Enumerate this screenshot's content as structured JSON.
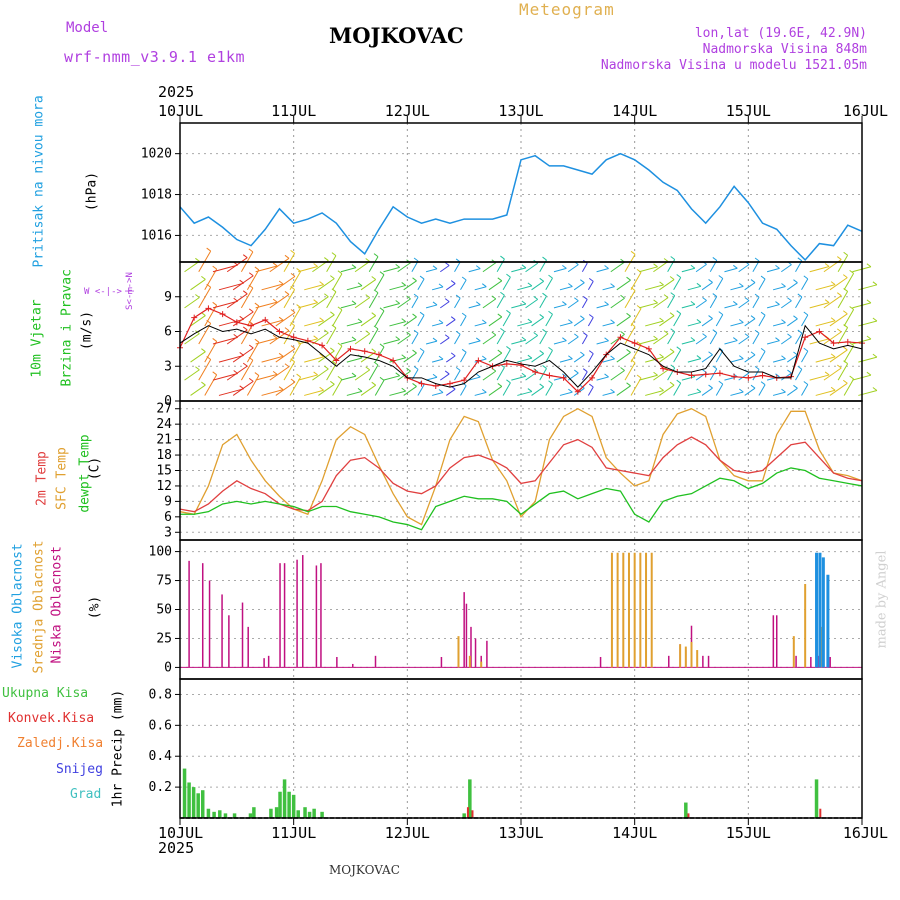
{
  "header": {
    "model_label": "Model",
    "model_name": "wrf-nmm_v3.9.1 e1km",
    "station": "MOJKOVAC",
    "product": "Meteogram",
    "lonlat": "lon,lat (19.6E, 42.9N)",
    "elevation": "Nadmorska Visina 848m",
    "model_elevation": "Nadmorska Visina u modelu 1521.05m"
  },
  "footer": {
    "station": "MOJKOVAC",
    "credit": "made by Angel"
  },
  "time_axis": {
    "year": "2025",
    "labels": [
      "10JUL",
      "11JUL",
      "12JUL",
      "13JUL",
      "14JUL",
      "15JUL",
      "16JUL"
    ]
  },
  "panels": {
    "pressure": {
      "label": "Pritisak na nivou mora",
      "unit": "(hPa)",
      "ticks": [
        "1016",
        "1018",
        "1020"
      ]
    },
    "wind": {
      "label1": "10m Vjetar",
      "label2": "Brzina i Pravac",
      "unit": "(m/s)",
      "ticks": [
        "0",
        "3",
        "6",
        "9"
      ],
      "compass_ns": "S<-|->N",
      "compass_we": "W <-|-> E"
    },
    "temperature": {
      "label1": "2m Temp",
      "label2": "SFC Temp",
      "label3": "dewpt Temp",
      "unit": "(C)",
      "ticks": [
        "3",
        "6",
        "9",
        "12",
        "15",
        "18",
        "21",
        "24",
        "27"
      ]
    },
    "cloud": {
      "label1": "Visoka Oblacnost",
      "label2": "Srednja Oblacnost",
      "label3": "Niska Oblacnost",
      "unit": "(%)",
      "ticks": [
        "0",
        "25",
        "50",
        "75",
        "100"
      ]
    },
    "precip": {
      "legend": [
        "Ukupna Kisa",
        "Konvek.Kisa",
        "Zaledj.Kisa",
        "Snijeg",
        "Grad"
      ],
      "unit": "1hr Precip (mm)",
      "ticks": [
        "0.2",
        "0.4",
        "0.6",
        "0.8"
      ]
    }
  },
  "colors": {
    "pressure": "#1e90e0",
    "wind_speed": "#e02020",
    "wind_gust": "#000000",
    "temp2m": "#e04040",
    "sfc": "#e0a030",
    "dew": "#20c020",
    "cloud_high": "#1e90e0",
    "cloud_mid": "#e0a030",
    "cloud_low": "#c01080",
    "precip_total": "#40c040",
    "precip_conv": "#e03030",
    "precip_frz": "#f08030",
    "snow": "#4040e0",
    "hail": "#40c0c0",
    "model_label": "#b040e0",
    "product": "#e0b050"
  },
  "chart_data": [
    {
      "type": "line",
      "title": "Pritisak na nivou mora",
      "ylabel": "(hPa)",
      "ylim": [
        1014.7,
        1021.5
      ],
      "x_days": [
        0,
        0.125,
        0.25,
        0.375,
        0.5,
        0.625,
        0.75,
        0.875,
        1.0,
        1.125,
        1.25,
        1.375,
        1.5,
        1.625,
        1.75,
        1.875,
        2.0,
        2.125,
        2.25,
        2.375,
        2.5,
        2.625,
        2.75,
        2.875,
        3.0,
        3.125,
        3.25,
        3.375,
        3.5,
        3.625,
        3.75,
        3.875,
        4.0,
        4.125,
        4.25,
        4.375,
        4.5,
        4.625,
        4.75,
        4.875,
        5.0,
        5.125,
        5.25,
        5.375,
        5.5,
        5.625,
        5.75,
        5.875,
        6.0
      ],
      "series": [
        {
          "values": [
            1017.4,
            1016.6,
            1016.9,
            1016.4,
            1015.8,
            1015.5,
            1016.3,
            1017.3,
            1016.6,
            1016.8,
            1017.1,
            1016.6,
            1015.7,
            1015.1,
            1016.3,
            1017.4,
            1016.9,
            1016.6,
            1016.8,
            1016.6,
            1016.8,
            1016.8,
            1016.8,
            1017.0,
            1019.7,
            1019.9,
            1019.4,
            1019.4,
            1019.2,
            1019.0,
            1019.7,
            1020.0,
            1019.7,
            1019.2,
            1018.6,
            1018.2,
            1017.3,
            1016.6,
            1017.4,
            1018.4,
            1017.6,
            1016.6,
            1016.3,
            1015.5,
            1014.8,
            1015.6,
            1015.5,
            1016.5,
            1016.2
          ]
        }
      ]
    },
    {
      "type": "line",
      "title": "10m Vjetar Brzina i Pravac",
      "ylabel": "(m/s)",
      "ylim": [
        0,
        12
      ],
      "x_days": [
        0,
        0.125,
        0.25,
        0.375,
        0.5,
        0.625,
        0.75,
        0.875,
        1.0,
        1.125,
        1.25,
        1.375,
        1.5,
        1.625,
        1.75,
        1.875,
        2.0,
        2.125,
        2.25,
        2.375,
        2.5,
        2.625,
        2.75,
        2.875,
        3.0,
        3.125,
        3.25,
        3.375,
        3.5,
        3.625,
        3.75,
        3.875,
        4.0,
        4.125,
        4.25,
        4.375,
        4.5,
        4.625,
        4.75,
        4.875,
        5.0,
        5.125,
        5.25,
        5.375,
        5.5,
        5.625,
        5.75,
        5.875,
        6.0
      ],
      "series": [
        {
          "values": [
            4.6,
            7.2,
            8.0,
            7.5,
            6.8,
            6.5,
            7.0,
            6.0,
            5.5,
            5.2,
            4.8,
            3.5,
            4.5,
            4.3,
            4.0,
            3.5,
            2.0,
            1.5,
            1.3,
            1.5,
            1.8,
            3.5,
            3.0,
            3.2,
            3.1,
            2.5,
            2.2,
            2.0,
            0.8,
            2.0,
            4.0,
            5.5,
            5.0,
            4.5,
            2.8,
            2.5,
            2.2,
            2.3,
            2.4,
            2.1,
            2.0,
            2.2,
            2.0,
            2.1,
            5.5,
            6.0,
            5.0,
            5.1,
            5.0
          ]
        },
        {
          "values": [
            5.0,
            5.8,
            6.5,
            6.0,
            6.2,
            5.8,
            6.2,
            5.5,
            5.3,
            5.0,
            4.0,
            3.0,
            4.0,
            3.8,
            3.5,
            3.0,
            2.0,
            2.0,
            1.5,
            1.2,
            1.5,
            2.5,
            3.0,
            3.5,
            3.2,
            3.0,
            3.5,
            2.5,
            1.2,
            2.5,
            4.0,
            5.0,
            4.5,
            4.0,
            3.0,
            2.5,
            2.5,
            2.8,
            4.5,
            3.0,
            2.5,
            2.5,
            2.0,
            2.0,
            6.5,
            5.0,
            4.5,
            4.8,
            4.5
          ]
        }
      ]
    },
    {
      "type": "line",
      "title": "2m Temp / SFC Temp / dewpt Temp",
      "ylabel": "(C)",
      "ylim": [
        1.5,
        28.5
      ],
      "x_days": [
        0,
        0.125,
        0.25,
        0.375,
        0.5,
        0.625,
        0.75,
        0.875,
        1.0,
        1.125,
        1.25,
        1.375,
        1.5,
        1.625,
        1.75,
        1.875,
        2.0,
        2.125,
        2.25,
        2.375,
        2.5,
        2.625,
        2.75,
        2.875,
        3.0,
        3.125,
        3.25,
        3.375,
        3.5,
        3.625,
        3.75,
        3.875,
        4.0,
        4.125,
        4.25,
        4.375,
        4.5,
        4.625,
        4.75,
        4.875,
        5.0,
        5.125,
        5.25,
        5.375,
        5.5,
        5.625,
        5.75,
        5.875,
        6.0
      ],
      "series": [
        {
          "name": "2m Temp",
          "values": [
            7.5,
            7.0,
            8.5,
            11.0,
            13.0,
            11.5,
            10.5,
            8.5,
            7.5,
            7.2,
            9.0,
            14.0,
            17.0,
            17.5,
            15.5,
            12.5,
            11.0,
            10.5,
            12.0,
            15.5,
            17.5,
            18.0,
            17.0,
            15.5,
            12.5,
            13.0,
            16.5,
            20.0,
            21.0,
            19.5,
            15.5,
            15.0,
            14.5,
            14.0,
            17.5,
            20.0,
            21.5,
            20.0,
            17.0,
            15.0,
            14.5,
            15.0,
            17.5,
            20.0,
            20.5,
            17.5,
            14.5,
            13.5,
            13.0
          ]
        },
        {
          "name": "SFC Temp",
          "values": [
            7.0,
            6.5,
            12.0,
            20.0,
            22.0,
            17.0,
            13.0,
            10.0,
            7.5,
            6.5,
            13.0,
            21.0,
            23.5,
            22.0,
            16.0,
            10.5,
            6.0,
            4.5,
            12.0,
            21.0,
            25.5,
            24.5,
            17.0,
            13.0,
            6.0,
            9.0,
            21.0,
            25.5,
            27.0,
            25.5,
            17.5,
            14.5,
            12.0,
            13.0,
            22.0,
            26.0,
            27.0,
            25.5,
            17.0,
            14.0,
            13.0,
            13.0,
            22.0,
            26.5,
            26.5,
            19.0,
            14.5,
            14.0,
            13.0
          ]
        },
        {
          "name": "dewpt Temp",
          "values": [
            6.5,
            6.5,
            7.0,
            8.5,
            9.0,
            8.5,
            9.0,
            8.5,
            8.0,
            7.0,
            8.0,
            8.0,
            7.0,
            6.5,
            6.0,
            5.0,
            4.5,
            3.5,
            8.0,
            9.0,
            10.0,
            9.5,
            9.5,
            9.0,
            6.5,
            8.5,
            10.5,
            11.0,
            9.5,
            10.5,
            11.5,
            11.0,
            6.5,
            5.0,
            9.0,
            10.0,
            10.5,
            12.0,
            13.5,
            13.0,
            11.5,
            12.5,
            14.5,
            15.5,
            15.0,
            13.5,
            13.0,
            12.5,
            12.0
          ]
        }
      ]
    },
    {
      "type": "bar",
      "title": "Visoka / Srednja / Niska Oblacnost",
      "ylabel": "(%)",
      "ylim": [
        0,
        100
      ],
      "series": [
        {
          "name": "Niska Oblacnost",
          "x_days": [
            0.08,
            0.2,
            0.26,
            0.37,
            0.43,
            0.55,
            0.6,
            0.74,
            0.78,
            0.88,
            0.92,
            1.03,
            1.08,
            1.2,
            1.24,
            1.38,
            1.52,
            1.72,
            2.3,
            2.5,
            2.52,
            2.56,
            2.6,
            2.65,
            2.7,
            3.7,
            4.3,
            4.4,
            4.45,
            4.5,
            4.6,
            4.65,
            5.22,
            5.25,
            5.42,
            5.55,
            5.62,
            5.72
          ],
          "values": [
            92,
            90,
            75,
            63,
            45,
            56,
            35,
            8,
            10,
            90,
            90,
            93,
            97,
            88,
            90,
            9,
            3,
            10,
            9,
            65,
            55,
            35,
            25,
            10,
            23,
            9,
            10,
            20,
            15,
            36,
            10,
            10,
            45,
            45,
            10,
            9,
            10,
            9
          ]
        },
        {
          "name": "Srednja Oblacnost",
          "x_days": [
            2.45,
            2.55,
            2.65,
            3.8,
            3.85,
            3.9,
            3.95,
            4.0,
            4.05,
            4.1,
            4.15,
            4.4,
            4.45,
            4.5,
            4.55,
            5.4,
            5.5,
            5.65
          ],
          "values": [
            27,
            10,
            5,
            99,
            99,
            99,
            99,
            99,
            99,
            99,
            99,
            20,
            18,
            22,
            15,
            27,
            72,
            35
          ]
        },
        {
          "name": "Visoka Oblacnost",
          "x_days": [
            5.6,
            5.63,
            5.66,
            5.7
          ],
          "values": [
            99,
            99,
            95,
            80
          ]
        }
      ]
    },
    {
      "type": "bar",
      "title": "1hr Precip",
      "ylabel": "1hr Precip (mm)",
      "ylim": [
        0,
        0.9
      ],
      "series": [
        {
          "name": "Ukupna Kisa",
          "x_days": [
            0.04,
            0.08,
            0.12,
            0.16,
            0.2,
            0.25,
            0.3,
            0.35,
            0.4,
            0.48,
            0.62,
            0.65,
            0.8,
            0.85,
            0.88,
            0.92,
            0.96,
            1.0,
            1.04,
            1.1,
            1.14,
            1.18,
            1.25,
            2.5,
            2.55,
            4.45,
            5.6
          ],
          "values": [
            0.32,
            0.23,
            0.2,
            0.16,
            0.18,
            0.06,
            0.04,
            0.05,
            0.03,
            0.03,
            0.03,
            0.07,
            0.06,
            0.07,
            0.17,
            0.25,
            0.17,
            0.15,
            0.05,
            0.07,
            0.04,
            0.06,
            0.04,
            0.03,
            0.25,
            0.1,
            0.25
          ]
        },
        {
          "name": "Konvek.Kisa",
          "x_days": [
            2.52,
            2.56,
            4.46,
            5.62
          ],
          "values": [
            0.07,
            0.05,
            0.03,
            0.06
          ]
        }
      ]
    }
  ]
}
